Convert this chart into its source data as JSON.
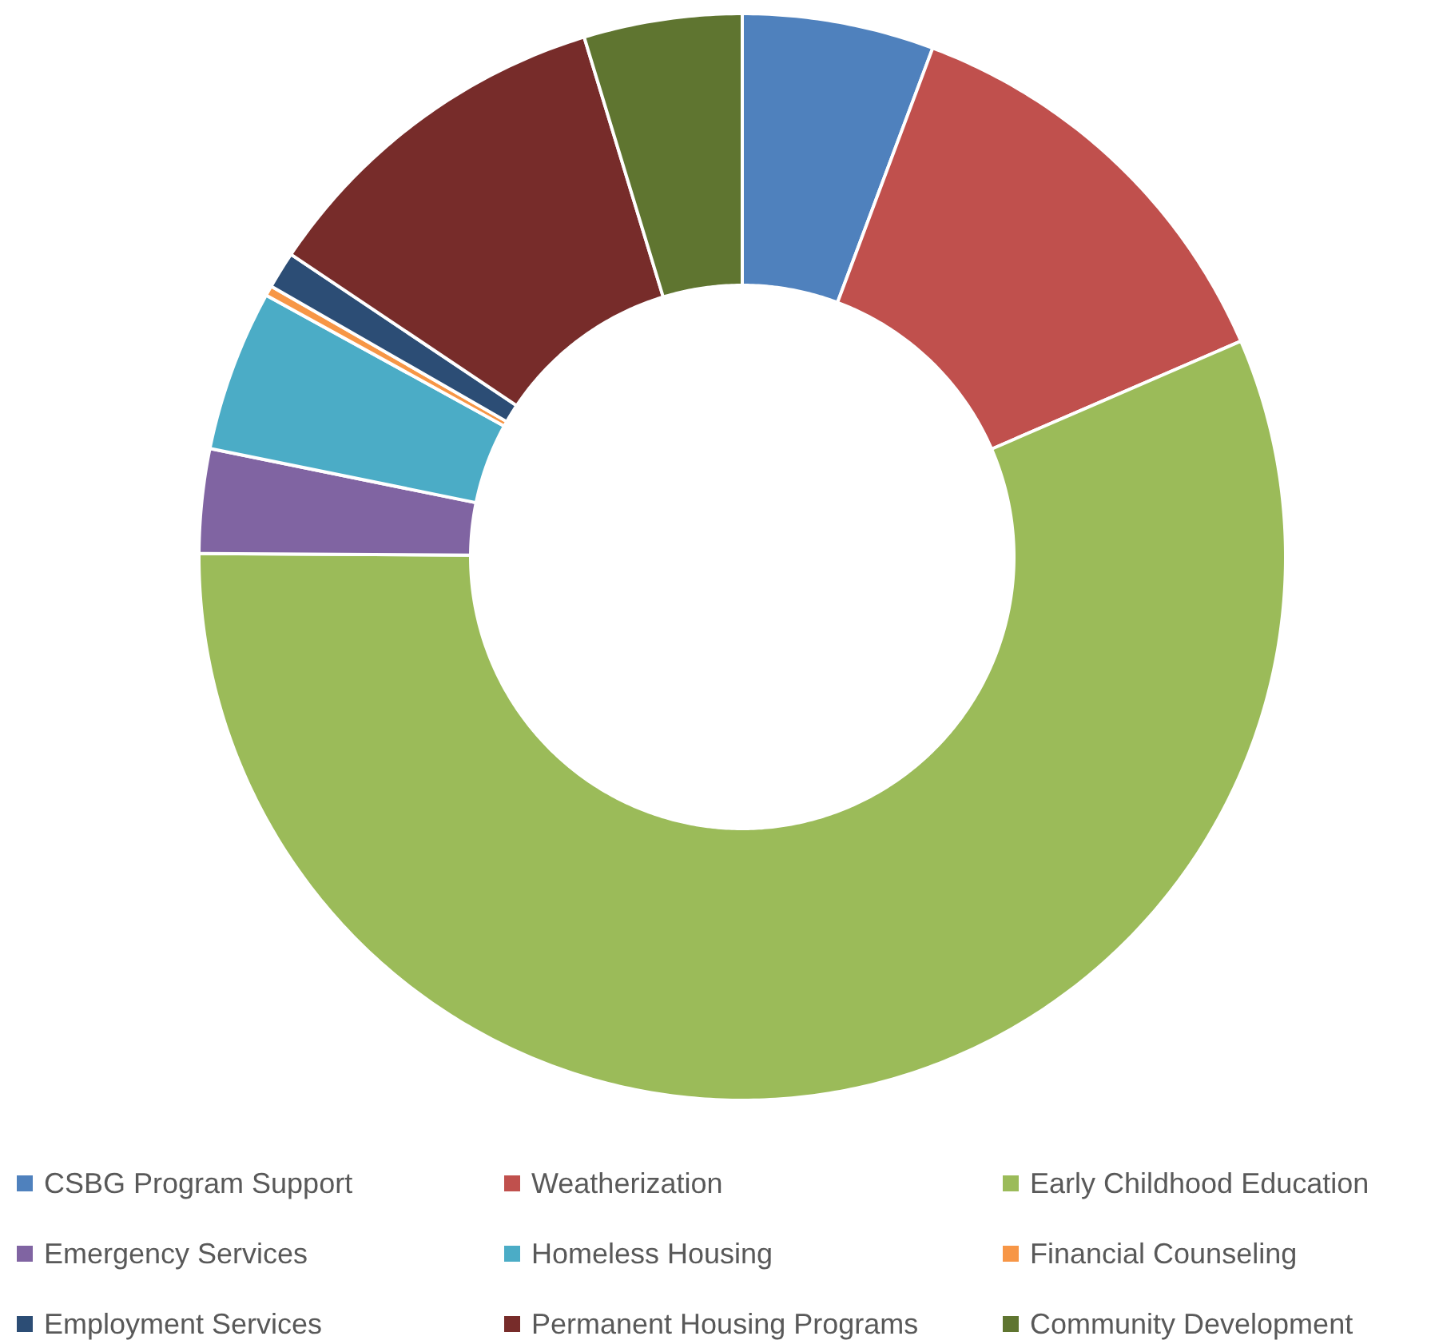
{
  "chart_data": {
    "type": "donut",
    "categories": [
      "CSBG Program Support",
      "Weatherization",
      "Early Childhood Education",
      "Emergency Services",
      "Homeless Housing",
      "Financial Counseling",
      "Employment Services",
      "Permanent Housing Programs",
      "Community Development"
    ],
    "values": [
      5.7,
      12.8,
      56.6,
      3.1,
      4.8,
      0.3,
      1.1,
      10.9,
      4.7
    ],
    "colors": [
      "#4f81bd",
      "#c0504d",
      "#9bbb59",
      "#8064a2",
      "#4bacc6",
      "#f79646",
      "#2c4d75",
      "#772c2a",
      "#5f7530"
    ],
    "legend": "bottom"
  }
}
